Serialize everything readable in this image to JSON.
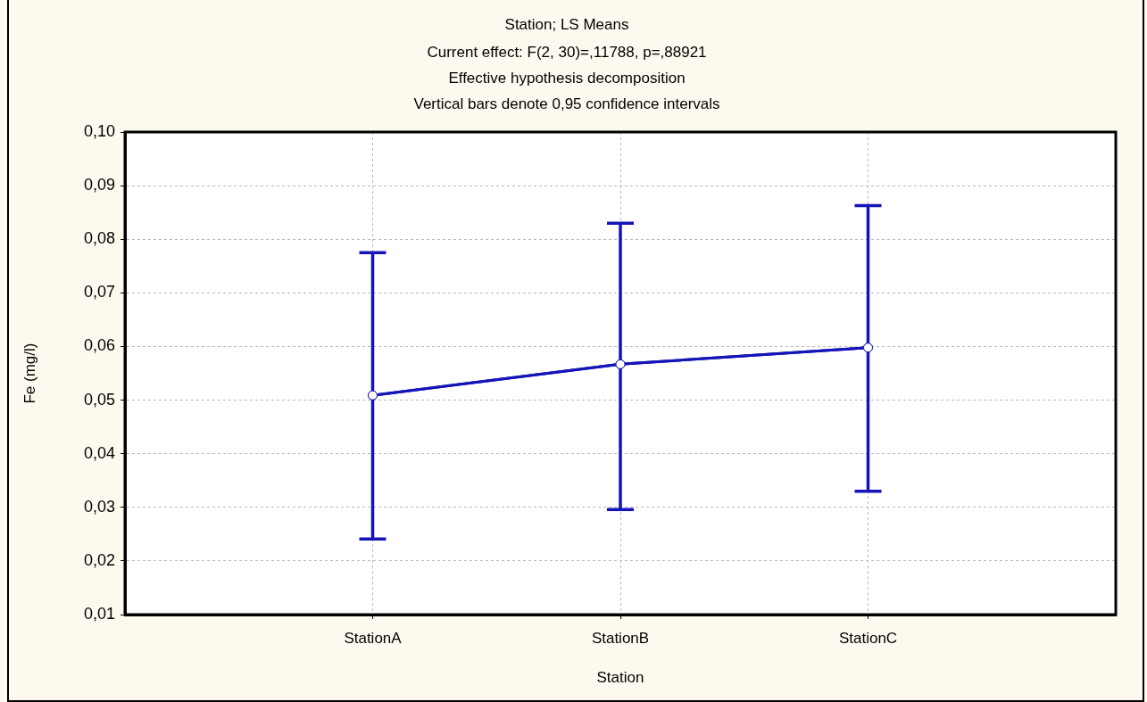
{
  "chart_data": {
    "type": "line",
    "title": "Station; LS Means",
    "subtitle": "Current effect: F(2, 30)=,11788, p=,88921",
    "annotations": [
      "Effective hypothesis decomposition",
      "Vertical bars denote 0,95 confidence intervals"
    ],
    "xlabel": "Station",
    "ylabel": "Fe (mg/l)",
    "categories": [
      "StationA",
      "StationB",
      "StationC"
    ],
    "values": [
      0.0509,
      0.0567,
      0.0598
    ],
    "errors": [
      [
        0.0241,
        0.0775
      ],
      [
        0.0296,
        0.083
      ],
      [
        0.033,
        0.0863
      ]
    ],
    "color": "#1414b8",
    "ylim": [
      0.01,
      0.1
    ],
    "yticks": [
      {
        "value": 0.01,
        "label": "0,01"
      },
      {
        "value": 0.02,
        "label": "0,02"
      },
      {
        "value": 0.03,
        "label": "0,03"
      },
      {
        "value": 0.04,
        "label": "0,04"
      },
      {
        "value": 0.05,
        "label": "0,05"
      },
      {
        "value": 0.06,
        "label": "0,06"
      },
      {
        "value": 0.07,
        "label": "0,07"
      },
      {
        "value": 0.08,
        "label": "0,08"
      },
      {
        "value": 0.09,
        "label": "0,09"
      },
      {
        "value": 0.1,
        "label": "0,10"
      }
    ],
    "grid": true,
    "legend": false,
    "marker": "circle",
    "line_style": "solid"
  }
}
